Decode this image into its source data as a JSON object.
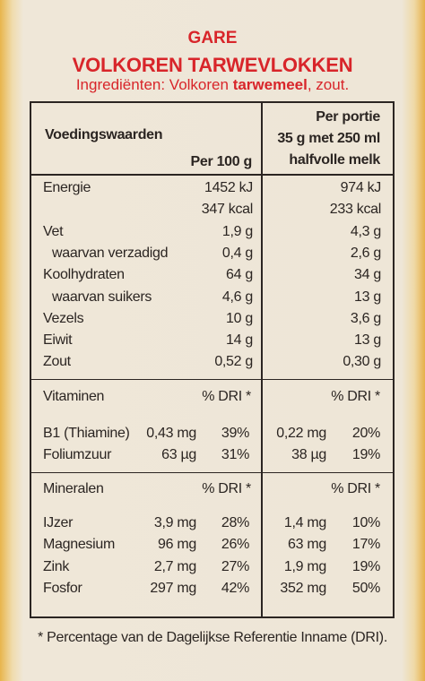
{
  "header": {
    "brand": "GARE",
    "product": "VOLKOREN TARWEVLOKKEN",
    "ingredients": [
      "Ingrediënten: Volkoren ",
      "tarwemeel",
      ", zout."
    ]
  },
  "table": {
    "heading": "Voedingswaarden",
    "col1": "Per 100 g",
    "col2": [
      "Per portie",
      "35 g met 250 ml",
      "halfvolle melk"
    ],
    "nutrients": [
      {
        "label": "Energie",
        "per100": "1452 kJ",
        "portion": "974 kJ"
      },
      {
        "per100": "347 kcal",
        "portion": "233 kcal"
      },
      {
        "label": "Vet",
        "per100": "1,9 g",
        "portion": "4,3 g"
      },
      {
        "label": "waarvan verzadigd",
        "indent": true,
        "per100": "0,4 g",
        "portion": "2,6 g"
      },
      {
        "label": "Koolhydraten",
        "per100": "64 g",
        "portion": "34 g"
      },
      {
        "label": "waarvan suikers",
        "indent": true,
        "per100": "4,6 g",
        "portion": "13 g"
      },
      {
        "label": "Vezels",
        "per100": "10 g",
        "portion": "3,6 g"
      },
      {
        "label": "Eiwit",
        "per100": "14 g",
        "portion": "13 g"
      },
      {
        "label": "Zout",
        "per100": "0,52 g",
        "portion": "0,30 g"
      }
    ],
    "sections": [
      {
        "label": "Vitaminen",
        "dri1": "% DRI *",
        "dri2": "% DRI *",
        "rows": [
          {
            "label": "B1 (Thiamine)",
            "per100": "0,43 mg",
            "pct100": "39%",
            "portion": "0,22 mg",
            "pctportion": "20%"
          },
          {
            "label": "Foliumzuur",
            "per100": "63 µg",
            "pct100": "31%",
            "portion": "38 µg",
            "pctportion": "19%"
          }
        ]
      },
      {
        "label": "Mineralen",
        "dri1": "% DRI *",
        "dri2": "% DRI *",
        "rows": [
          {
            "label": "IJzer",
            "per100": "3,9 mg",
            "pct100": "28%",
            "portion": "1,4 mg",
            "pctportion": "10%"
          },
          {
            "label": "Magnesium",
            "per100": "96 mg",
            "pct100": "26%",
            "portion": "63 mg",
            "pctportion": "17%"
          },
          {
            "label": "Zink",
            "per100": "2,7 mg",
            "pct100": "27%",
            "portion": "1,9 mg",
            "pctportion": "19%"
          },
          {
            "label": "Fosfor",
            "per100": "297 mg",
            "pct100": "42%",
            "portion": "352 mg",
            "pctportion": "50%"
          }
        ]
      }
    ],
    "footnote": "* Percentage van de Dagelijkse Referentie Inname (DRI)."
  }
}
